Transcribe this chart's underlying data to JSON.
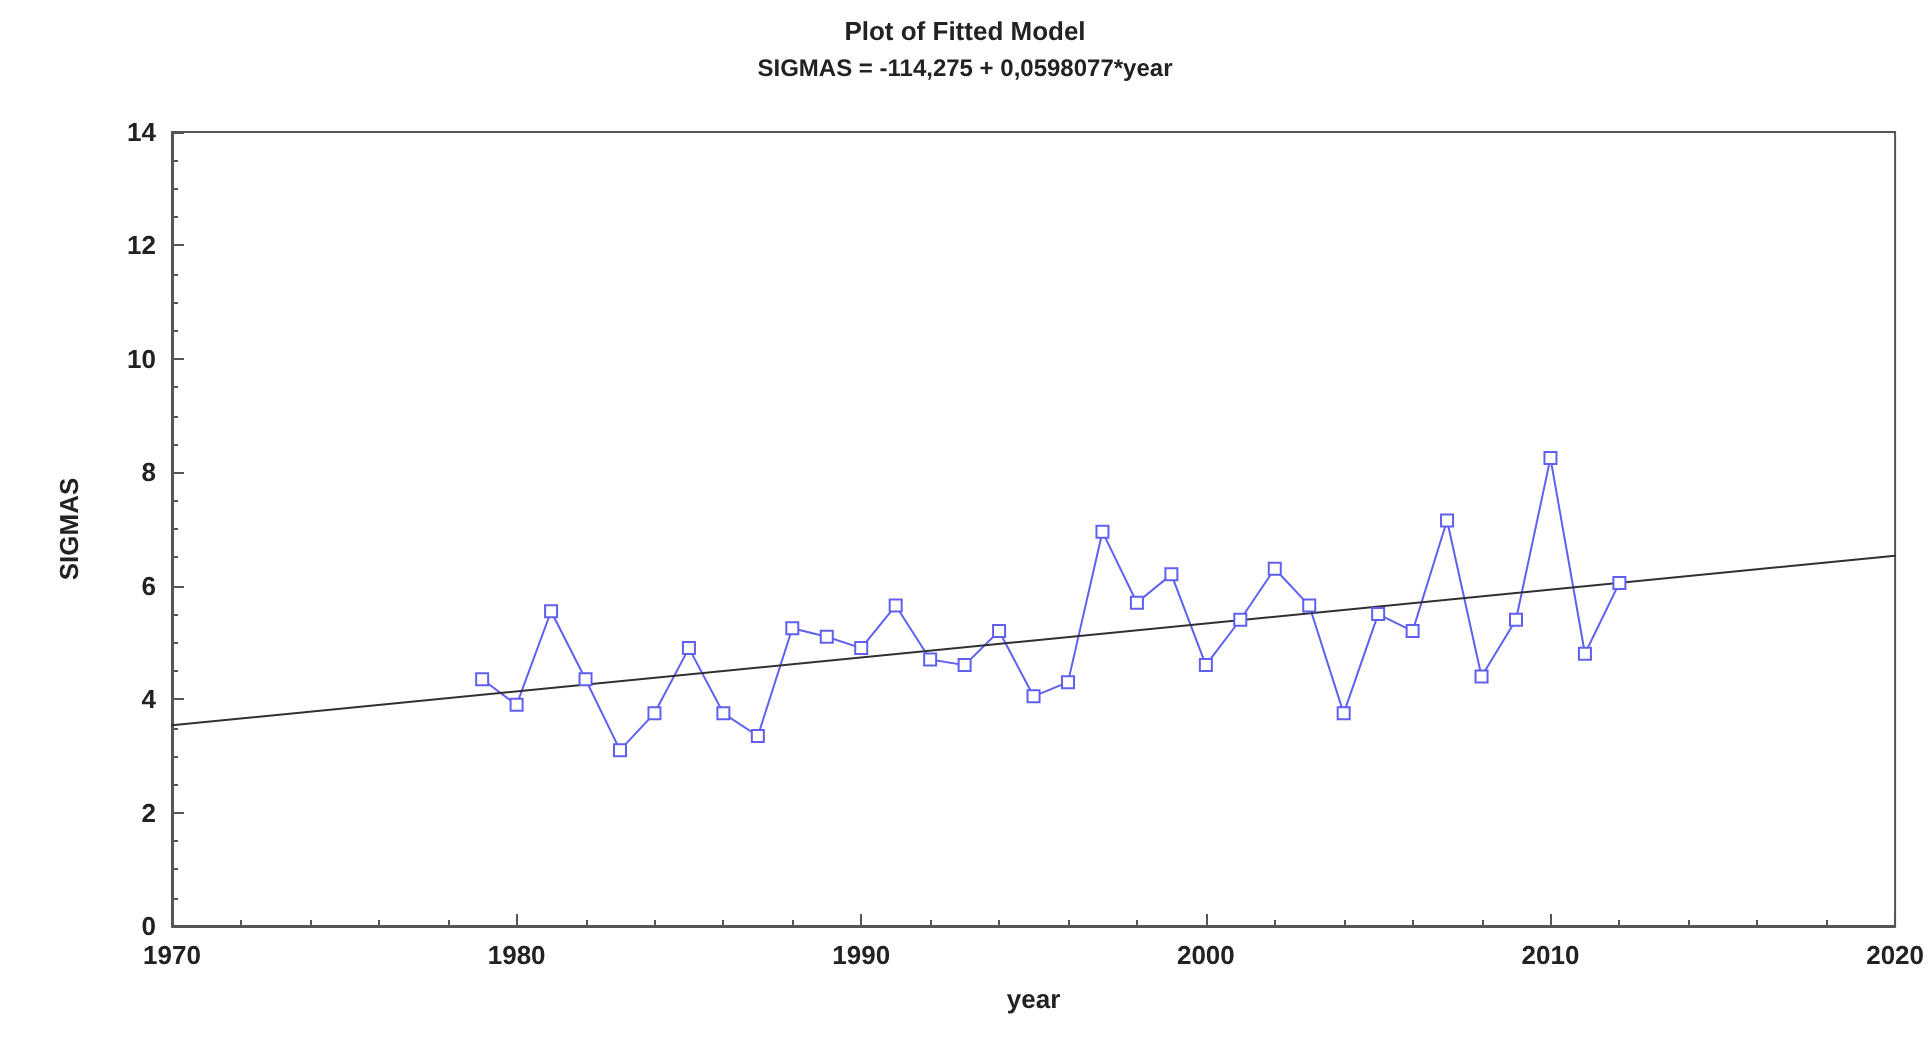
{
  "chart_data": {
    "type": "line",
    "title": "Plot of Fitted Model",
    "subtitle": "SIGMAS = -114,275 + 0,0598077*year",
    "xlabel": "year",
    "ylabel": "SIGMAS",
    "xlim": [
      1970,
      2020
    ],
    "xticks": [
      1970,
      1980,
      1990,
      2000,
      2010,
      2020
    ],
    "ylim": [
      0,
      14
    ],
    "yticks": [
      0,
      2,
      4,
      6,
      8,
      10,
      12,
      14
    ],
    "grid": false,
    "marker": "square",
    "line_style": "solid",
    "series": [
      {
        "color": "#6060f0",
        "x": [
          1979,
          1980,
          1981,
          1982,
          1983,
          1984,
          1985,
          1986,
          1987,
          1988,
          1989,
          1990,
          1991,
          1992,
          1993,
          1994,
          1995,
          1996,
          1997,
          1998,
          1999,
          2000,
          2001,
          2002,
          2003,
          2004,
          2005,
          2006,
          2007,
          2008,
          2009,
          2010,
          2011,
          2012
        ],
        "values": [
          4.35,
          3.9,
          5.55,
          4.35,
          3.1,
          3.75,
          4.9,
          3.75,
          3.35,
          5.25,
          5.1,
          4.9,
          5.65,
          4.7,
          4.6,
          5.2,
          4.05,
          4.3,
          6.95,
          5.7,
          6.2,
          4.6,
          5.4,
          6.3,
          5.65,
          3.75,
          5.5,
          5.2,
          7.15,
          4.4,
          5.4,
          8.25,
          4.8,
          6.05
        ]
      },
      {
        "type": "line",
        "marker": "none",
        "color": "#303030",
        "x": [
          1970,
          2020
        ],
        "values": [
          3.54,
          6.53
        ]
      }
    ]
  }
}
